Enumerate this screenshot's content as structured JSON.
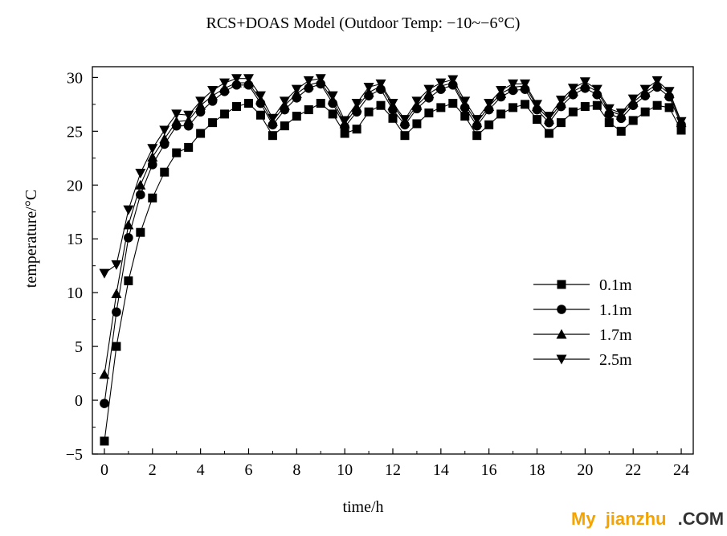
{
  "chart_data": {
    "type": "line",
    "title": "RCS+DOAS Model (Outdoor Temp: −10~−6°C)",
    "xlabel": "time/h",
    "ylabel": "temperature/°C",
    "xlim": [
      -0.5,
      24.5
    ],
    "ylim": [
      -5,
      31
    ],
    "xticks": [
      0,
      2,
      4,
      6,
      8,
      10,
      12,
      14,
      16,
      18,
      20,
      22,
      24
    ],
    "yticks": [
      -5,
      0,
      5,
      10,
      15,
      20,
      25,
      30
    ],
    "xtick_labels": [
      "0",
      "2",
      "4",
      "6",
      "8",
      "10",
      "12",
      "14",
      "16",
      "18",
      "20",
      "22",
      "24"
    ],
    "ytick_labels": [
      "−5",
      "0",
      "5",
      "10",
      "15",
      "20",
      "25",
      "30"
    ],
    "legend_position": "right",
    "grid": false,
    "x": [
      0,
      0.5,
      1,
      1.5,
      2,
      2.5,
      3,
      3.5,
      4,
      4.5,
      5,
      5.5,
      6,
      6.5,
      7,
      7.5,
      8,
      8.5,
      9,
      9.5,
      10,
      10.5,
      11,
      11.5,
      12,
      12.5,
      13,
      13.5,
      14,
      14.5,
      15,
      15.5,
      16,
      16.5,
      17,
      17.5,
      18,
      18.5,
      19,
      19.5,
      20,
      20.5,
      21,
      21.5,
      22,
      22.5,
      23,
      23.5,
      24
    ],
    "series": [
      {
        "name": "0.1m",
        "marker": "square",
        "values": [
          -3.8,
          5.0,
          11.1,
          15.6,
          18.8,
          21.2,
          23.0,
          23.5,
          24.8,
          25.8,
          26.6,
          27.3,
          27.6,
          26.5,
          24.6,
          25.5,
          26.4,
          27.0,
          27.6,
          26.6,
          24.8,
          25.2,
          26.8,
          27.4,
          26.2,
          24.6,
          25.7,
          26.7,
          27.2,
          27.6,
          26.4,
          24.6,
          25.6,
          26.6,
          27.2,
          27.5,
          26.1,
          24.8,
          25.8,
          26.8,
          27.3,
          27.4,
          25.8,
          25.0,
          26.0,
          26.8,
          27.4,
          27.2,
          25.1
        ]
      },
      {
        "name": "1.1m",
        "marker": "circle",
        "values": [
          -0.3,
          8.2,
          15.1,
          19.1,
          21.9,
          23.8,
          25.5,
          25.5,
          26.8,
          27.8,
          28.7,
          29.3,
          29.3,
          27.6,
          25.6,
          27.0,
          28.1,
          29.0,
          29.4,
          27.6,
          25.4,
          26.8,
          28.3,
          28.9,
          27.0,
          25.6,
          27.1,
          28.1,
          28.9,
          29.3,
          27.2,
          25.5,
          27.0,
          28.2,
          28.8,
          28.9,
          27.0,
          25.8,
          27.3,
          28.4,
          29.0,
          28.4,
          26.6,
          26.2,
          27.4,
          28.3,
          29.1,
          28.2,
          25.6
        ]
      },
      {
        "name": "1.7m",
        "marker": "triangle-up",
        "values": [
          2.4,
          9.9,
          16.3,
          20.0,
          22.6,
          24.3,
          25.9,
          26.0,
          27.4,
          28.3,
          29.0,
          29.5,
          29.5,
          27.9,
          25.9,
          27.4,
          28.5,
          29.3,
          29.6,
          27.9,
          25.7,
          27.2,
          28.6,
          29.2,
          27.4,
          25.9,
          27.4,
          28.5,
          29.2,
          29.5,
          27.5,
          25.8,
          27.3,
          28.5,
          29.1,
          29.2,
          27.3,
          26.1,
          27.6,
          28.7,
          29.3,
          28.7,
          26.9,
          26.5,
          27.7,
          28.6,
          29.4,
          28.5,
          25.8
        ]
      },
      {
        "name": "2.5m",
        "marker": "triangle-down",
        "values": [
          11.8,
          12.6,
          17.7,
          21.1,
          23.4,
          25.1,
          26.6,
          26.5,
          27.8,
          28.8,
          29.5,
          29.9,
          29.9,
          28.3,
          26.2,
          27.8,
          28.9,
          29.7,
          29.9,
          28.3,
          26.0,
          27.6,
          29.1,
          29.4,
          27.6,
          26.1,
          27.8,
          28.9,
          29.5,
          29.8,
          27.8,
          26.1,
          27.6,
          28.8,
          29.4,
          29.4,
          27.5,
          26.4,
          27.9,
          29.0,
          29.6,
          28.9,
          27.1,
          26.7,
          28.0,
          28.9,
          29.7,
          28.7,
          25.9
        ]
      }
    ]
  },
  "watermark": {
    "my": "My",
    "site": "jianzhu",
    "dotcom": ".COM"
  },
  "colors": {
    "line": "#000000",
    "watermark_yellow": "#f4a300",
    "watermark_dark": "#333333"
  }
}
